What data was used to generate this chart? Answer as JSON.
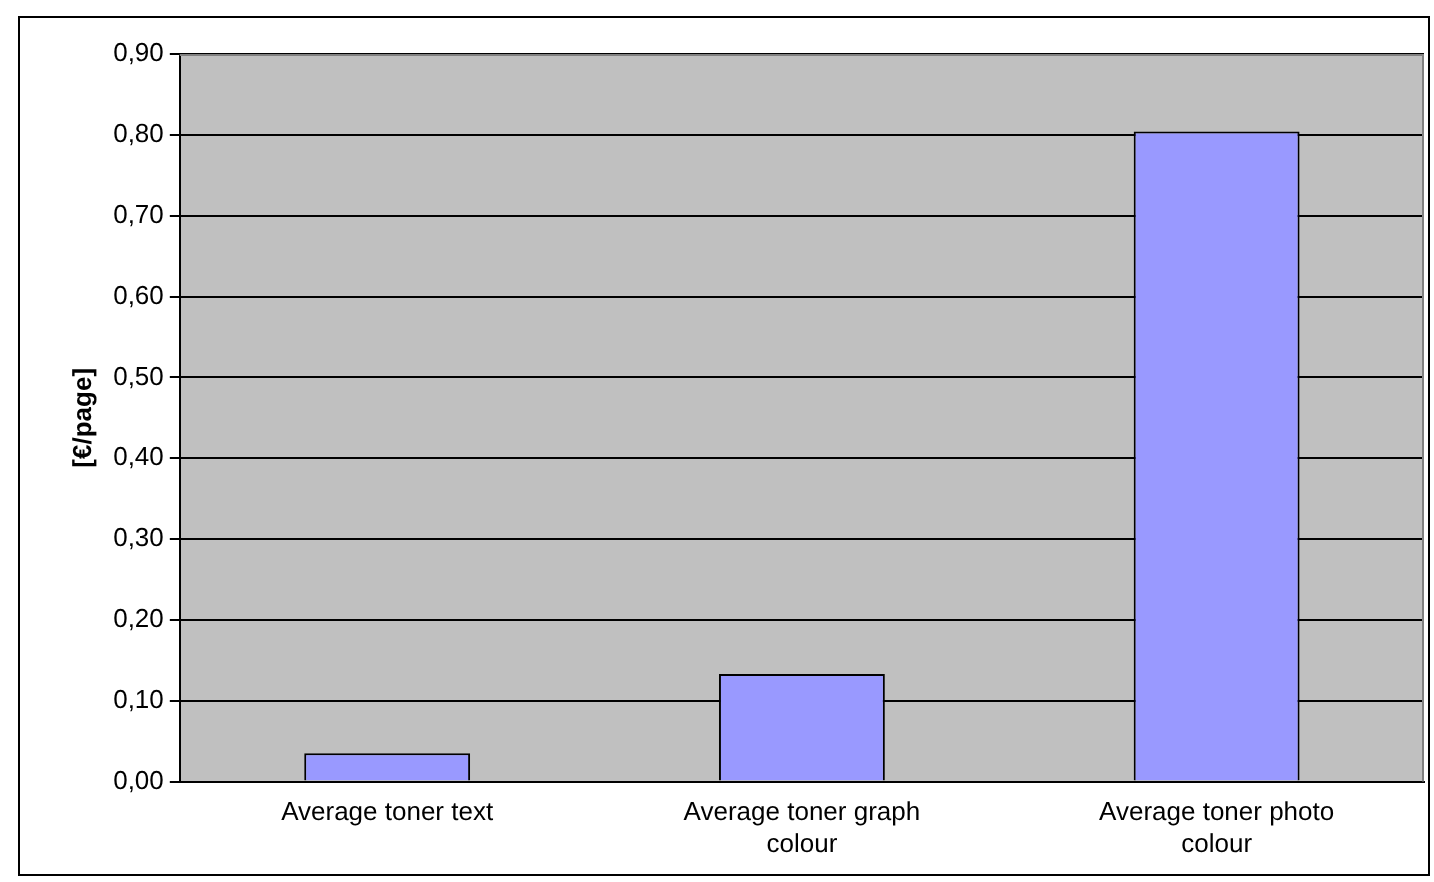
{
  "chart_data": {
    "type": "bar",
    "ylabel": "[€/page]",
    "categories": [
      "Average toner text",
      "Average toner graph colour",
      "Average toner photo colour"
    ],
    "values": [
      0.035,
      0.133,
      0.804
    ],
    "color": "#9999ff",
    "ylim": [
      0,
      0.9
    ],
    "yticks": [
      {
        "value": 0,
        "label": "0,00"
      },
      {
        "value": 0.1,
        "label": "0,10"
      },
      {
        "value": 0.2,
        "label": "0,20"
      },
      {
        "value": 0.3,
        "label": "0,30"
      },
      {
        "value": 0.4,
        "label": "0,40"
      },
      {
        "value": 0.5,
        "label": "0,50"
      },
      {
        "value": 0.6,
        "label": "0,60"
      },
      {
        "value": 0.7,
        "label": "0,70"
      },
      {
        "value": 0.8,
        "label": "0,80"
      },
      {
        "value": 0.9,
        "label": "0,90"
      }
    ],
    "grid": "y",
    "legend": false
  }
}
